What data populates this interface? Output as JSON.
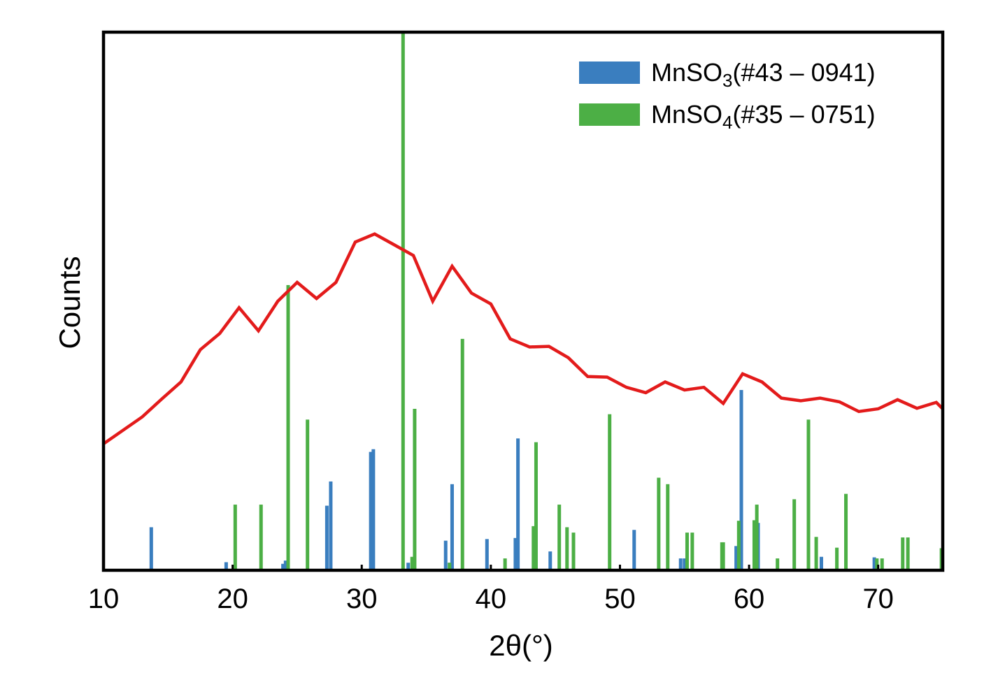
{
  "chart_data": {
    "type": "bar",
    "xlabel": "2θ(°)",
    "ylabel": "Counts",
    "xlim": [
      10,
      75
    ],
    "ylim": [
      0,
      100
    ],
    "xticks": [
      10,
      20,
      30,
      40,
      50,
      60,
      70
    ],
    "yticks_visible": false,
    "grid": false,
    "legend_position": "top-right",
    "colors": {
      "reference_1": "#3a7ebf",
      "reference_2": "#4caf45",
      "measured": "#e31b1b"
    },
    "series": [
      {
        "name": "MnSO3(#43 – 0941)",
        "legend_main": "MnSO",
        "legend_sub": "3",
        "legend_tail": "(#43 – 0941)",
        "type": "stick",
        "peaks": [
          [
            13.7,
            8
          ],
          [
            19.5,
            1.5
          ],
          [
            23.9,
            1.2
          ],
          [
            24.1,
            1.8
          ],
          [
            27.3,
            12
          ],
          [
            27.6,
            16.5
          ],
          [
            30.7,
            22
          ],
          [
            30.9,
            22.5
          ],
          [
            33.6,
            1.4
          ],
          [
            36.5,
            5.5
          ],
          [
            36.8,
            1.4
          ],
          [
            37.0,
            16
          ],
          [
            39.7,
            5.8
          ],
          [
            41.9,
            6
          ],
          [
            42.1,
            24.5
          ],
          [
            44.6,
            3.5
          ],
          [
            51.1,
            7.5
          ],
          [
            54.7,
            2.2
          ],
          [
            55.0,
            2.2
          ],
          [
            59.0,
            4.5
          ],
          [
            59.4,
            33.5
          ],
          [
            60.7,
            8.8
          ],
          [
            65.6,
            2.5
          ],
          [
            69.7,
            2.4
          ]
        ]
      },
      {
        "name": "MnSO4(#35 – 0751)",
        "legend_main": "MnSO",
        "legend_sub": "4",
        "legend_tail": "(#35 – 0751)",
        "type": "stick",
        "peaks": [
          [
            20.2,
            12.2
          ],
          [
            22.2,
            12.2
          ],
          [
            24.3,
            53
          ],
          [
            25.8,
            28
          ],
          [
            33.2,
            100
          ],
          [
            33.9,
            2.5
          ],
          [
            34.1,
            30
          ],
          [
            36.8,
            1.4
          ],
          [
            37.8,
            43
          ],
          [
            41.1,
            2.2
          ],
          [
            43.3,
            8.2
          ],
          [
            43.5,
            23.8
          ],
          [
            45.3,
            12.2
          ],
          [
            45.9,
            8
          ],
          [
            46.4,
            7
          ],
          [
            49.2,
            29
          ],
          [
            53.0,
            17.2
          ],
          [
            53.7,
            16
          ],
          [
            55.2,
            7
          ],
          [
            55.6,
            7
          ],
          [
            57.9,
            5.2
          ],
          [
            58.0,
            5.2
          ],
          [
            59.2,
            9.2
          ],
          [
            60.4,
            9.3
          ],
          [
            60.6,
            12.2
          ],
          [
            62.2,
            2.2
          ],
          [
            63.5,
            13.2
          ],
          [
            64.6,
            28
          ],
          [
            65.2,
            6.2
          ],
          [
            66.8,
            4.2
          ],
          [
            67.5,
            14.2
          ],
          [
            69.9,
            2.2
          ],
          [
            70.3,
            2.2
          ],
          [
            71.9,
            6.1
          ],
          [
            72.3,
            6.1
          ],
          [
            74.9,
            4.1
          ]
        ]
      },
      {
        "name": "measured",
        "type": "line",
        "points": [
          [
            10.0,
            23.5
          ],
          [
            11.5,
            26.0
          ],
          [
            13.0,
            28.5
          ],
          [
            14.5,
            31.8
          ],
          [
            16.0,
            35.0
          ],
          [
            17.5,
            41.0
          ],
          [
            19.0,
            44.0
          ],
          [
            20.5,
            48.8
          ],
          [
            22.0,
            44.5
          ],
          [
            23.5,
            50.0
          ],
          [
            25.0,
            53.5
          ],
          [
            26.5,
            50.5
          ],
          [
            28.0,
            53.5
          ],
          [
            29.5,
            61.0
          ],
          [
            31.0,
            62.5
          ],
          [
            32.5,
            60.5
          ],
          [
            34.0,
            58.5
          ],
          [
            35.5,
            50.0
          ],
          [
            37.0,
            56.5
          ],
          [
            38.5,
            51.5
          ],
          [
            40.0,
            49.5
          ],
          [
            41.5,
            43.0
          ],
          [
            43.0,
            41.5
          ],
          [
            44.5,
            41.6
          ],
          [
            46.0,
            39.5
          ],
          [
            47.5,
            36.0
          ],
          [
            49.0,
            35.9
          ],
          [
            50.5,
            34.0
          ],
          [
            52.0,
            33.0
          ],
          [
            53.5,
            35.0
          ],
          [
            55.0,
            33.5
          ],
          [
            56.5,
            34.0
          ],
          [
            58.0,
            31.0
          ],
          [
            59.5,
            36.5
          ],
          [
            61.0,
            35.0
          ],
          [
            62.5,
            32.0
          ],
          [
            64.0,
            31.5
          ],
          [
            65.5,
            32.0
          ],
          [
            67.0,
            31.3
          ],
          [
            68.5,
            29.5
          ],
          [
            70.0,
            30.0
          ],
          [
            71.5,
            31.7
          ],
          [
            73.0,
            30.1
          ],
          [
            74.5,
            31.2
          ],
          [
            75.0,
            30.0
          ]
        ]
      }
    ]
  }
}
